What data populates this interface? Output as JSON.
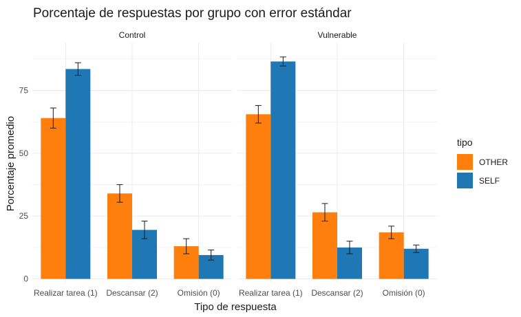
{
  "chart_data": {
    "type": "bar",
    "title": "Porcentaje de respuestas por grupo con error estándar",
    "xlabel": "Tipo de respuesta",
    "ylabel": "Porcentaje promedio",
    "ylim": [
      -1.2,
      94
    ],
    "yticks": [
      0,
      25,
      50,
      75
    ],
    "grid": true,
    "legend_placement": "right",
    "legend_title": "tipo",
    "categories": [
      "Realizar tarea (1)",
      "Descansar (2)",
      "Omisión (0)"
    ],
    "panels": [
      {
        "label": "Control",
        "series": [
          {
            "name": "OTHER",
            "color": "#FF7F0E",
            "values": [
              64,
              34,
              13
            ],
            "errors": [
              4,
              3.5,
              3
            ]
          },
          {
            "name": "SELF",
            "color": "#1F77B4",
            "values": [
              83.5,
              19.5,
              9.5
            ],
            "errors": [
              2.5,
              3.5,
              2
            ]
          }
        ]
      },
      {
        "label": "Vulnerable",
        "series": [
          {
            "name": "OTHER",
            "color": "#FF7F0E",
            "values": [
              65.5,
              26.5,
              18.5
            ],
            "errors": [
              3.5,
              3.5,
              2.5
            ]
          },
          {
            "name": "SELF",
            "color": "#1F77B4",
            "values": [
              86.5,
              12.5,
              12
            ],
            "errors": [
              1.8,
              2.5,
              1.5
            ]
          }
        ]
      }
    ]
  }
}
